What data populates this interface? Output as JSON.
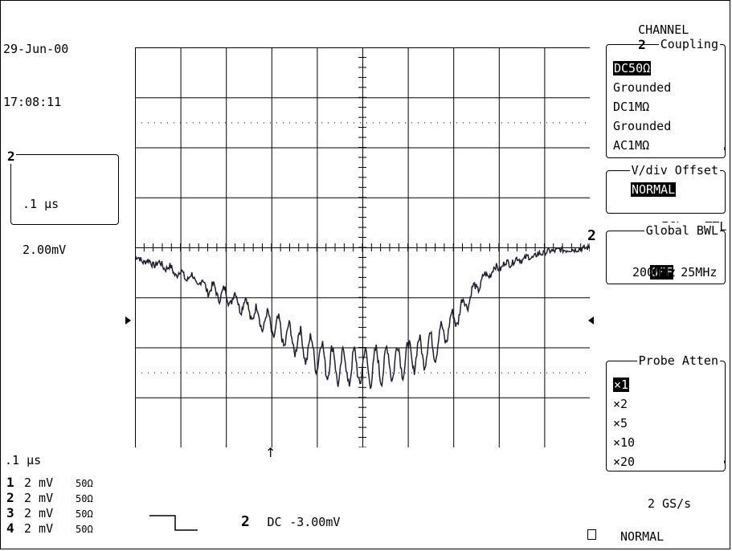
{
  "header": {
    "date": "29-Jun-00",
    "time": "17:08:11"
  },
  "channel_label": "CHANNEL",
  "channel_num": "2",
  "coupling": {
    "title": "Coupling",
    "options": [
      "DC50Ω",
      "Grounded",
      "DC1MΩ",
      "Grounded",
      "AC1MΩ"
    ],
    "selected": "DC50Ω"
  },
  "vdiv_offset": {
    "title": "V/div Offset",
    "selected": "NORMAL",
    "options": [
      "ECL",
      "TTL"
    ]
  },
  "global_bwl": {
    "title": "Global BWL",
    "selected": "OFF",
    "options": [
      "25MHz",
      "200MHz"
    ]
  },
  "probe_atten": {
    "title": "Probe Atten",
    "options": [
      "×1",
      "×2",
      "×5",
      "×10",
      "×20"
    ],
    "selected": "×1"
  },
  "trace_box": {
    "channel": "2",
    "timebase": ".1 μs",
    "volts": "2.00mV"
  },
  "trace_marker": "2",
  "timebase_label": ".1 μs",
  "channels": [
    {
      "num": "1",
      "volts": "2 mV",
      "imp": "50Ω"
    },
    {
      "num": "2",
      "volts": "2 mV",
      "imp": "50Ω"
    },
    {
      "num": "3",
      "volts": "2 mV",
      "imp": "50Ω"
    },
    {
      "num": "4",
      "volts": "2 mV",
      "imp": "50Ω"
    }
  ],
  "trigger": {
    "channel": "2",
    "coupling": "DC",
    "level": "-3.00mV"
  },
  "sample_rate": "2 GS/s",
  "acq_mode": "NORMAL",
  "chart_data": {
    "type": "line",
    "grid": {
      "h_divisions": 10,
      "v_divisions": 8
    },
    "series": [
      {
        "trace": "2",
        "description": "noisy waveform dipping from the zero level to about -2.4 div and back",
        "x_div": [
          0.0,
          0.3,
          0.6,
          0.9,
          1.2,
          1.5,
          1.8,
          2.1,
          2.4,
          2.7,
          3.0,
          3.3,
          3.6,
          3.9,
          4.2,
          4.5,
          4.8,
          5.1,
          5.4,
          5.7,
          6.0,
          6.3,
          6.6,
          6.9,
          7.2,
          7.5,
          7.8,
          8.1,
          8.4,
          8.7,
          9.0,
          9.3,
          9.6,
          10.0
        ],
        "y_div": [
          -0.2,
          -0.3,
          -0.35,
          -0.5,
          -0.6,
          -0.75,
          -0.9,
          -1.0,
          -1.15,
          -1.4,
          -1.55,
          -1.75,
          -1.9,
          -2.1,
          -2.25,
          -2.4,
          -2.4,
          -2.4,
          -2.35,
          -2.3,
          -2.2,
          -2.1,
          -1.95,
          -1.6,
          -1.2,
          -0.8,
          -0.5,
          -0.35,
          -0.25,
          -0.2,
          -0.1,
          -0.05,
          -0.05,
          0.0
        ]
      }
    ]
  }
}
